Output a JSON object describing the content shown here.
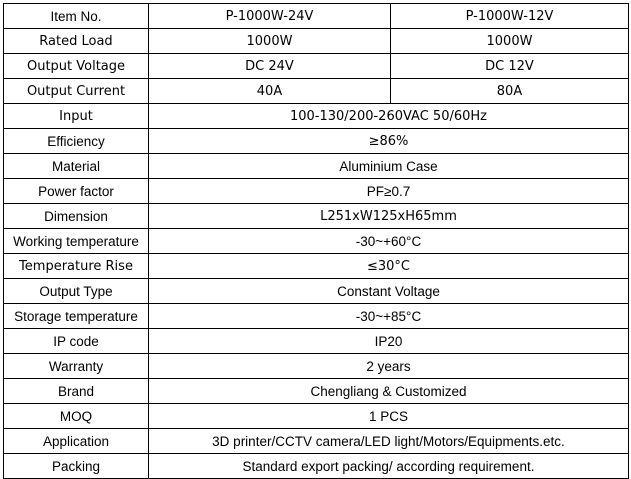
{
  "rows": [
    {
      "label": "Item No.",
      "values": [
        "P-1000W-24V",
        "P-1000W-12V"
      ]
    },
    {
      "label": "Rated Load",
      "values": [
        "1000W",
        "1000W"
      ]
    },
    {
      "label": "Output Voltage",
      "values": [
        "DC 24V",
        "DC 12V"
      ]
    },
    {
      "label": "Output Current",
      "values": [
        "40A",
        "80A"
      ]
    },
    {
      "label": "Input",
      "values": [
        "100-130/200-260VAC 50/60Hz"
      ]
    },
    {
      "label": "Efficiency",
      "values": [
        "≥86%"
      ]
    },
    {
      "label": "Material",
      "values": [
        "Aluminium Case"
      ]
    },
    {
      "label": "Power factor",
      "values": [
        "PF≥0.7"
      ]
    },
    {
      "label": "Dimension",
      "values": [
        "L251xW125xH65mm"
      ]
    },
    {
      "label": "Working temperature",
      "values": [
        "-30~+60°C"
      ]
    },
    {
      "label": "Temperature Rise",
      "values": [
        "≤30°C"
      ]
    },
    {
      "label": "Output Type",
      "values": [
        "Constant Voltage"
      ]
    },
    {
      "label": "Storage temperature",
      "values": [
        "-30~+85°C"
      ]
    },
    {
      "label": "IP code",
      "values": [
        "IP20"
      ]
    },
    {
      "label": "Warranty",
      "values": [
        "2 years"
      ]
    },
    {
      "label": "Brand",
      "values": [
        "Chengliang & Customized"
      ]
    },
    {
      "label": "MOQ",
      "values": [
        "1 PCS"
      ]
    },
    {
      "label": "Application",
      "values": [
        "3D printer/CCTV camera/LED light/Motors/Equipments.etc."
      ]
    },
    {
      "label": "Packing",
      "values": [
        "Standard export packing/ according requirement."
      ]
    }
  ]
}
